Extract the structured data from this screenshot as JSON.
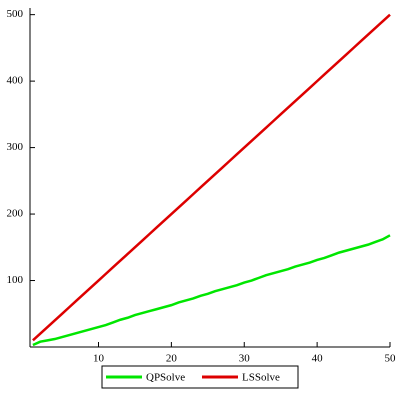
{
  "chart_data": {
    "type": "line",
    "x": [
      1,
      2,
      3,
      4,
      5,
      6,
      7,
      8,
      9,
      10,
      11,
      12,
      13,
      14,
      15,
      16,
      17,
      18,
      19,
      20,
      21,
      22,
      23,
      24,
      25,
      26,
      27,
      28,
      29,
      30,
      31,
      32,
      33,
      34,
      35,
      36,
      37,
      38,
      39,
      40,
      41,
      42,
      43,
      44,
      45,
      46,
      47,
      48,
      49,
      50
    ],
    "series": [
      {
        "name": "QPSolve",
        "color": "#00e600",
        "values": [
          3,
          8,
          10,
          12,
          15,
          18,
          21,
          24,
          27,
          30,
          33,
          37,
          41,
          44,
          48,
          51,
          54,
          57,
          60,
          63,
          67,
          70,
          73,
          77,
          80,
          84,
          87,
          90,
          93,
          97,
          100,
          104,
          108,
          111,
          114,
          117,
          121,
          124,
          127,
          131,
          134,
          138,
          142,
          145,
          148,
          151,
          154,
          158,
          162,
          168
        ]
      },
      {
        "name": "LSSolve",
        "color": "#dd0000",
        "values": [
          10,
          20,
          30,
          40,
          50,
          60,
          70,
          80,
          90,
          100,
          110,
          120,
          130,
          140,
          150,
          160,
          170,
          180,
          190,
          200,
          210,
          220,
          230,
          240,
          250,
          260,
          270,
          280,
          290,
          300,
          310,
          320,
          330,
          340,
          350,
          360,
          370,
          380,
          390,
          400,
          410,
          420,
          430,
          440,
          450,
          460,
          470,
          480,
          490,
          500
        ]
      }
    ],
    "xlim": [
      0.6,
      50
    ],
    "ylim": [
      0,
      510
    ],
    "xticks": [
      10,
      20,
      30,
      40,
      50
    ],
    "yticks": [
      100,
      200,
      300,
      400,
      500
    ]
  }
}
